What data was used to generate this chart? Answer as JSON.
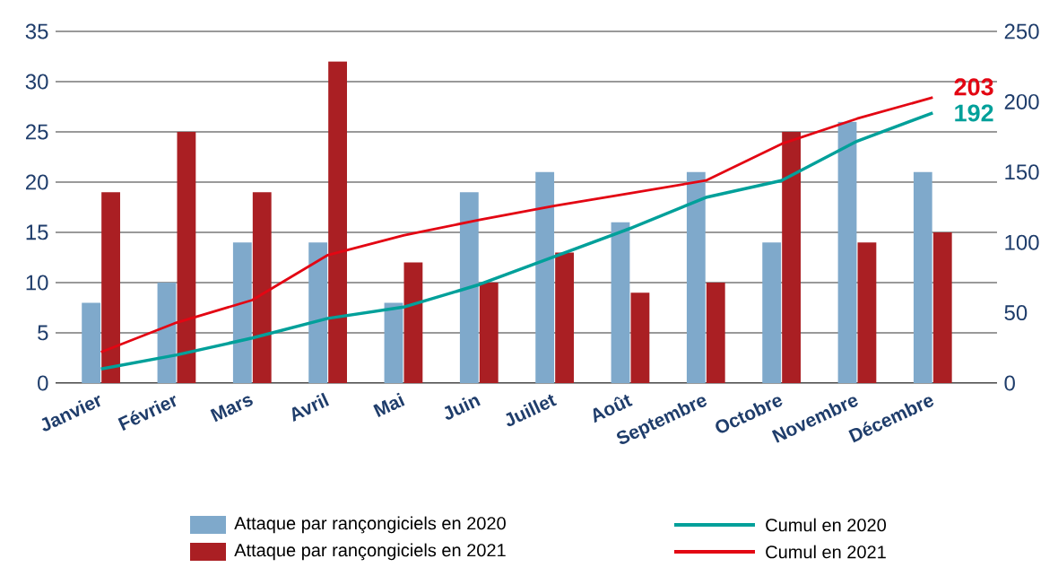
{
  "chart_data": {
    "type": "bar",
    "categories": [
      "Janvier",
      "Février",
      "Mars",
      "Avril",
      "Mai",
      "Juin",
      "Juillet",
      "Août",
      "Septembre",
      "Octobre",
      "Novembre",
      "Décembre"
    ],
    "series": [
      {
        "name": "Attaque par rançongiciels en 2020",
        "color": "#7fa9cb",
        "values": [
          8,
          10,
          14,
          14,
          8,
          19,
          21,
          16,
          21,
          14,
          26,
          21
        ]
      },
      {
        "name": "Attaque par rançongiciels en 2021",
        "color": "#aa1f23",
        "values": [
          19,
          25,
          19,
          32,
          12,
          10,
          13,
          9,
          10,
          25,
          14,
          15
        ]
      },
      {
        "name": "Cumul en 2020",
        "type": "line",
        "axis": "y2",
        "color": "#00a09a",
        "values": [
          10,
          20,
          32,
          46,
          54,
          70,
          90,
          110,
          132,
          144,
          172,
          192
        ]
      },
      {
        "name": "Cumul en 2021",
        "type": "line",
        "axis": "y2",
        "color": "#e30613",
        "values": [
          22,
          43,
          59,
          91,
          105,
          116,
          126,
          135,
          144,
          170,
          188,
          203
        ]
      }
    ],
    "ylim": [
      0,
      35
    ],
    "yticks": [
      0,
      5,
      10,
      15,
      20,
      25,
      30,
      35
    ],
    "y2lim": [
      0,
      250
    ],
    "y2ticks": [
      0,
      50,
      100,
      150,
      200,
      250
    ],
    "grid": "y",
    "legend": "bottom",
    "marker": "none",
    "annotations": [
      "203",
      "192"
    ]
  }
}
